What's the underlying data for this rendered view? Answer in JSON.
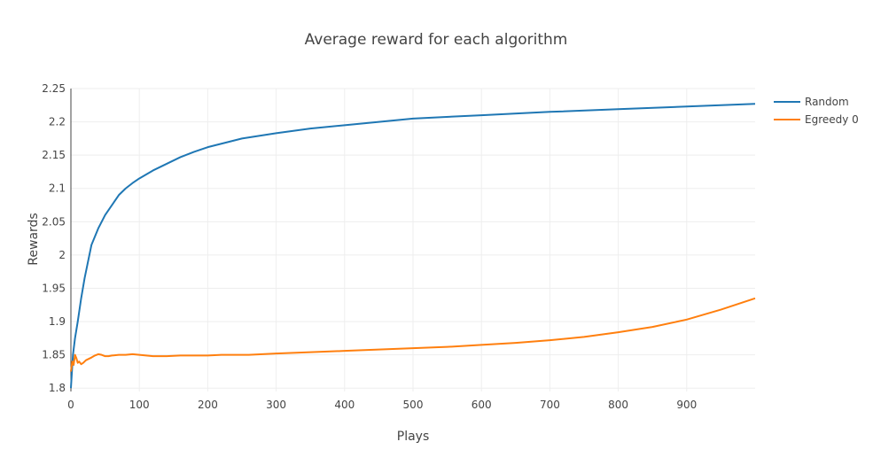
{
  "chart_data": {
    "type": "line",
    "title": "Average reward for each algorithm",
    "xlabel": "Plays",
    "ylabel": "Rewards",
    "xlim": [
      0,
      1000
    ],
    "ylim": [
      1.795,
      2.25
    ],
    "xticks": [
      0,
      100,
      200,
      300,
      400,
      500,
      600,
      700,
      800,
      900
    ],
    "xtick_labels": [
      "0",
      "100",
      "200",
      "300",
      "400",
      "500",
      "600",
      "700",
      "800",
      "900"
    ],
    "yticks": [
      1.8,
      1.85,
      1.9,
      1.95,
      2.0,
      2.05,
      2.1,
      2.15,
      2.2,
      2.25
    ],
    "ytick_labels": [
      "1.8",
      "1.85",
      "1.9",
      "1.95",
      "2",
      "2.05",
      "2.1",
      "2.15",
      "2.2",
      "2.25"
    ],
    "grid": true,
    "legend_position": "top-right",
    "series": [
      {
        "name": "Random",
        "color": "#1f77b4",
        "x": [
          0,
          3,
          6,
          10,
          15,
          20,
          30,
          40,
          50,
          60,
          70,
          80,
          90,
          100,
          120,
          140,
          160,
          180,
          200,
          250,
          300,
          350,
          400,
          450,
          500,
          600,
          700,
          800,
          900,
          1000
        ],
        "y": [
          1.8,
          1.85,
          1.875,
          1.9,
          1.935,
          1.965,
          2.015,
          2.04,
          2.06,
          2.075,
          2.09,
          2.1,
          2.108,
          2.115,
          2.127,
          2.137,
          2.147,
          2.155,
          2.162,
          2.175,
          2.183,
          2.19,
          2.195,
          2.2,
          2.205,
          2.21,
          2.215,
          2.219,
          2.223,
          2.227
        ]
      },
      {
        "name": "Egreedy 0",
        "color": "#ff7f0e",
        "x": [
          0,
          2,
          4,
          6,
          8,
          10,
          12,
          15,
          18,
          22,
          26,
          30,
          35,
          40,
          45,
          50,
          55,
          60,
          70,
          80,
          90,
          100,
          110,
          120,
          140,
          160,
          180,
          200,
          220,
          240,
          260,
          300,
          350,
          400,
          450,
          500,
          550,
          600,
          650,
          700,
          750,
          800,
          850,
          900,
          950,
          1000
        ],
        "y": [
          1.825,
          1.84,
          1.835,
          1.85,
          1.845,
          1.838,
          1.84,
          1.836,
          1.838,
          1.842,
          1.844,
          1.846,
          1.849,
          1.851,
          1.85,
          1.848,
          1.848,
          1.849,
          1.85,
          1.85,
          1.851,
          1.85,
          1.849,
          1.848,
          1.848,
          1.849,
          1.849,
          1.849,
          1.85,
          1.85,
          1.85,
          1.852,
          1.854,
          1.856,
          1.858,
          1.86,
          1.862,
          1.865,
          1.868,
          1.872,
          1.877,
          1.884,
          1.892,
          1.903,
          1.918,
          1.935
        ]
      }
    ]
  }
}
